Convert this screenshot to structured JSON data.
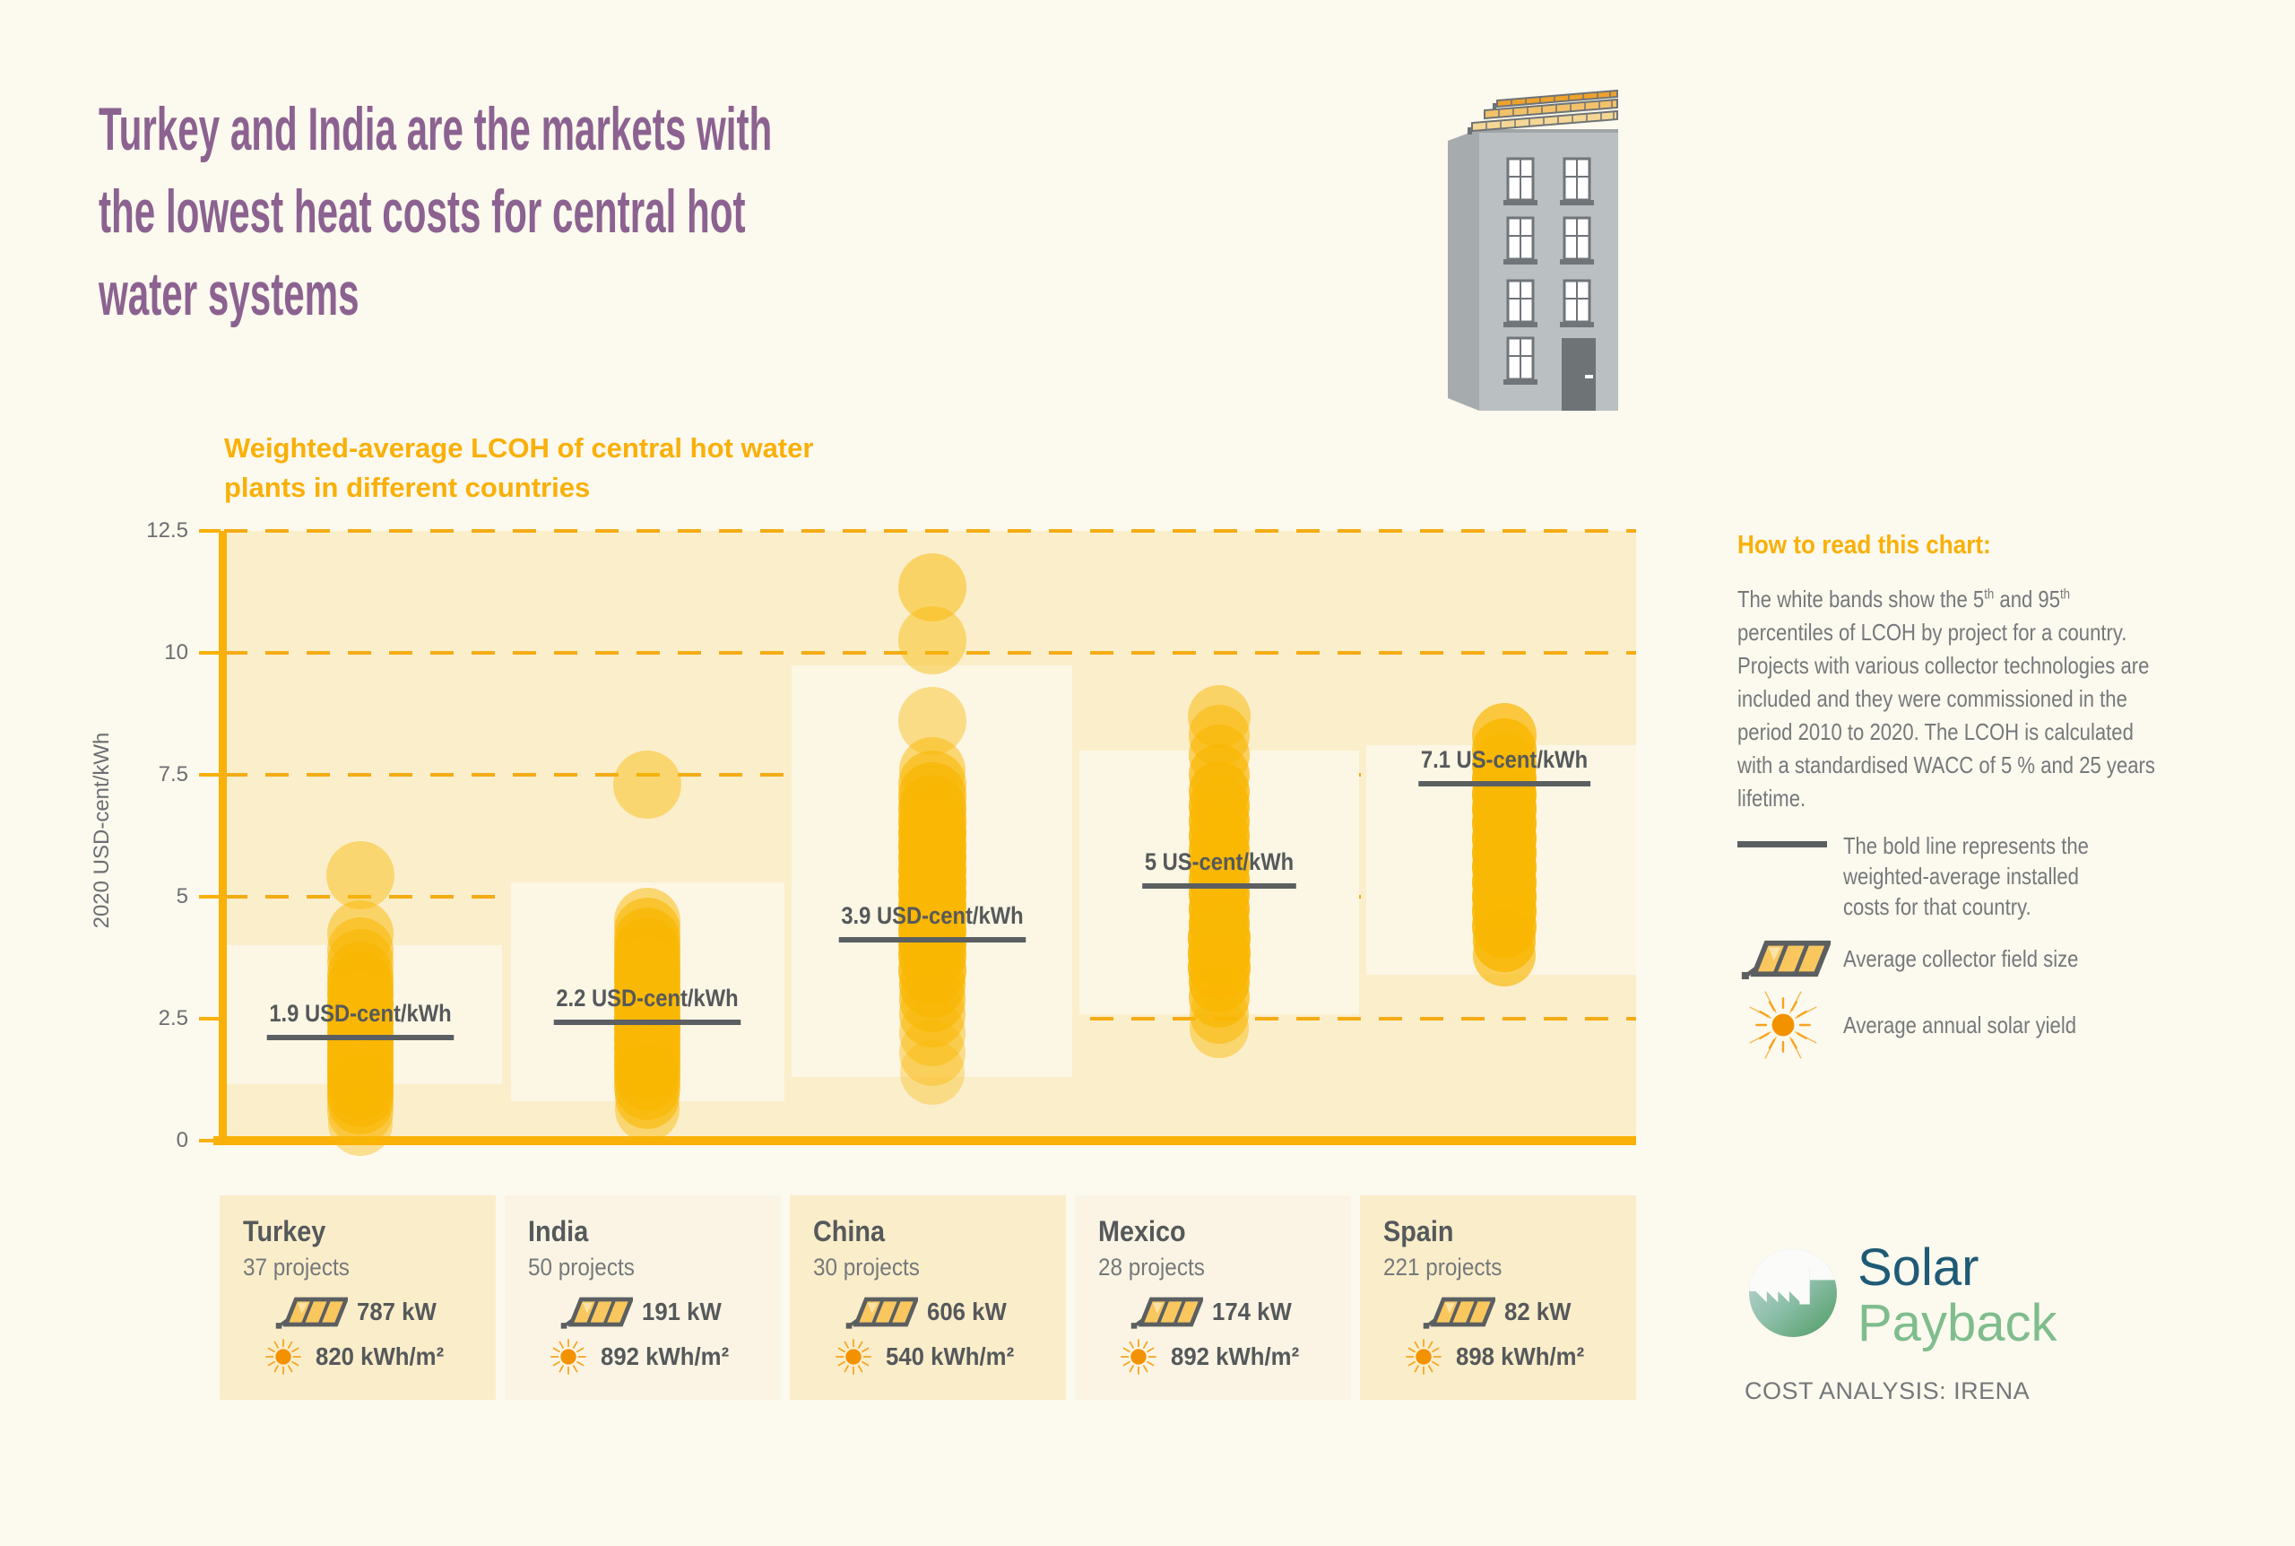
{
  "page": {
    "background": "#FCF9EE",
    "title_lines": [
      "Turkey and India are the markets with",
      "the lowest heat costs for central hot",
      "water systems"
    ],
    "title_color": "#8B6290"
  },
  "chart_data": {
    "type": "scatter",
    "title": "Weighted-average LCOH of central hot water plants in different countries",
    "title_lines": [
      "Weighted-average LCOH of central hot water",
      "plants in different countries"
    ],
    "xlabel": "",
    "ylabel": "2020 USD-cent/kWh",
    "ylim": [
      0,
      12.5
    ],
    "yticks": [
      0,
      2.5,
      5,
      7.5,
      10,
      12.5
    ],
    "ytick_labels": [
      "0",
      "2.5",
      "5",
      "7.5",
      "10",
      "12.5"
    ],
    "grid": {
      "style": "dashed",
      "at": [
        2.5,
        5,
        7.5,
        10,
        12.5
      ],
      "color": "#F3AC14"
    },
    "legend_position": "right",
    "accent_color": "#F9B008",
    "bubble_color": "#F9B703",
    "plot_bg": "#FBEECB",
    "band_color": "#FCF6E5",
    "avg_line_color": "#5B5F61",
    "bubble_note": "bubbles = [LCOH value in 2020 USD-cent/kWh, radius px, opacity]",
    "countries": [
      {
        "name": "Turkey",
        "avg_value": 1.9,
        "avg_label": "1.9 USD-cent/kWh",
        "percentile_band": [
          1.15,
          4.0
        ],
        "bubbles": [
          [
            5.45,
            38,
            0.45
          ],
          [
            4.25,
            37,
            0.5
          ],
          [
            3.9,
            37,
            0.55
          ],
          [
            3.65,
            37,
            0.6
          ],
          [
            3.4,
            37,
            0.7
          ],
          [
            3.2,
            37,
            0.8
          ],
          [
            3.0,
            37,
            0.85
          ],
          [
            2.8,
            37,
            0.9
          ],
          [
            2.6,
            37,
            0.9
          ],
          [
            2.4,
            37,
            0.9
          ],
          [
            2.2,
            37,
            0.9
          ],
          [
            2.0,
            37,
            0.9
          ],
          [
            1.85,
            37,
            0.9
          ],
          [
            1.7,
            37,
            0.9
          ],
          [
            1.55,
            37,
            0.9
          ],
          [
            1.4,
            37,
            0.88
          ],
          [
            1.25,
            37,
            0.85
          ],
          [
            1.1,
            37,
            0.8
          ],
          [
            0.95,
            37,
            0.75
          ],
          [
            0.8,
            37,
            0.65
          ],
          [
            0.6,
            37,
            0.5
          ],
          [
            0.35,
            36,
            0.4
          ]
        ]
      },
      {
        "name": "India",
        "avg_value": 2.2,
        "avg_label": "2.2 USD-cent/kWh",
        "percentile_band": [
          0.8,
          5.3
        ],
        "bubbles": [
          [
            7.3,
            38,
            0.45
          ],
          [
            4.5,
            37,
            0.5
          ],
          [
            4.3,
            37,
            0.6
          ],
          [
            4.1,
            37,
            0.7
          ],
          [
            3.9,
            37,
            0.8
          ],
          [
            3.7,
            37,
            0.85
          ],
          [
            3.5,
            37,
            0.9
          ],
          [
            3.3,
            37,
            0.9
          ],
          [
            3.1,
            37,
            0.92
          ],
          [
            2.9,
            37,
            0.92
          ],
          [
            2.7,
            37,
            0.92
          ],
          [
            2.5,
            37,
            0.92
          ],
          [
            2.3,
            37,
            0.92
          ],
          [
            2.1,
            37,
            0.9
          ],
          [
            1.9,
            37,
            0.9
          ],
          [
            1.7,
            37,
            0.88
          ],
          [
            1.5,
            37,
            0.85
          ],
          [
            1.3,
            37,
            0.8
          ],
          [
            1.1,
            37,
            0.7
          ],
          [
            0.9,
            36,
            0.6
          ],
          [
            0.65,
            36,
            0.45
          ]
        ]
      },
      {
        "name": "China",
        "avg_value": 3.9,
        "avg_label": "3.9 USD-cent/kWh",
        "percentile_band": [
          1.3,
          9.75
        ],
        "bubbles": [
          [
            11.35,
            38,
            0.5
          ],
          [
            10.25,
            38,
            0.45
          ],
          [
            8.6,
            38,
            0.42
          ],
          [
            7.6,
            37,
            0.5
          ],
          [
            7.3,
            38,
            0.6
          ],
          [
            7.05,
            38,
            0.7
          ],
          [
            6.8,
            38,
            0.8
          ],
          [
            6.55,
            38,
            0.85
          ],
          [
            6.3,
            38,
            0.9
          ],
          [
            6.05,
            38,
            0.9
          ],
          [
            5.8,
            38,
            0.9
          ],
          [
            5.55,
            38,
            0.9
          ],
          [
            5.3,
            38,
            0.9
          ],
          [
            5.05,
            38,
            0.9
          ],
          [
            4.8,
            38,
            0.9
          ],
          [
            4.55,
            38,
            0.9
          ],
          [
            4.3,
            38,
            0.9
          ],
          [
            4.05,
            38,
            0.88
          ],
          [
            3.8,
            38,
            0.85
          ],
          [
            3.5,
            38,
            0.8
          ],
          [
            3.2,
            37,
            0.75
          ],
          [
            2.9,
            37,
            0.65
          ],
          [
            2.6,
            37,
            0.55
          ],
          [
            2.2,
            37,
            0.45
          ],
          [
            1.8,
            37,
            0.4
          ],
          [
            1.4,
            36,
            0.35
          ]
        ]
      },
      {
        "name": "Mexico",
        "avg_value": 5,
        "avg_label": "5 US-cent/kWh",
        "percentile_band": [
          2.6,
          8.0
        ],
        "bubbles": [
          [
            8.7,
            35,
            0.5
          ],
          [
            8.3,
            34,
            0.55
          ],
          [
            7.9,
            34,
            0.6
          ],
          [
            7.5,
            34,
            0.7
          ],
          [
            7.15,
            34,
            0.8
          ],
          [
            6.85,
            34,
            0.85
          ],
          [
            6.55,
            34,
            0.85
          ],
          [
            6.25,
            34,
            0.88
          ],
          [
            5.95,
            34,
            0.88
          ],
          [
            5.65,
            34,
            0.88
          ],
          [
            5.35,
            34,
            0.88
          ],
          [
            5.05,
            34,
            0.9
          ],
          [
            4.75,
            34,
            0.9
          ],
          [
            4.45,
            34,
            0.9
          ],
          [
            4.15,
            35,
            0.92
          ],
          [
            3.85,
            35,
            0.92
          ],
          [
            3.55,
            35,
            0.9
          ],
          [
            3.25,
            34,
            0.85
          ],
          [
            2.95,
            34,
            0.7
          ],
          [
            2.6,
            33,
            0.55
          ],
          [
            2.3,
            33,
            0.45
          ]
        ]
      },
      {
        "name": "Spain",
        "avg_value": 7.1,
        "avg_label": "7.1 US-cent/kWh",
        "percentile_band": [
          3.4,
          8.1
        ],
        "bubbles": [
          [
            8.3,
            36,
            0.7
          ],
          [
            8.0,
            36,
            0.85
          ],
          [
            7.7,
            36,
            0.92
          ],
          [
            7.4,
            36,
            0.95
          ],
          [
            7.1,
            36,
            0.95
          ],
          [
            6.8,
            36,
            0.95
          ],
          [
            6.5,
            36,
            0.95
          ],
          [
            6.2,
            36,
            0.95
          ],
          [
            5.9,
            36,
            0.95
          ],
          [
            5.6,
            36,
            0.95
          ],
          [
            5.3,
            36,
            0.95
          ],
          [
            5.0,
            36,
            0.95
          ],
          [
            4.7,
            36,
            0.92
          ],
          [
            4.4,
            36,
            0.88
          ],
          [
            4.1,
            35,
            0.8
          ],
          [
            3.8,
            35,
            0.65
          ]
        ]
      }
    ]
  },
  "how_to_read": {
    "heading": "How to read this chart:",
    "body": {
      "p1": "The white bands show the 5",
      "sup1": "th",
      "p2": " and 95",
      "sup2": "th",
      "p3": " percentiles of LCOH by project for a country. Projects with various collector technologies are included and they were commissioned in the period 2010 to 2020. The LCOH is calculated with a standardised WACC of 5 % and 25 years lifetime."
    },
    "legend": [
      {
        "icon": "bold-line-icon",
        "label": "The bold line represents the weighted-average installed costs for that country."
      },
      {
        "icon": "collector-icon",
        "label": "Average collector field size"
      },
      {
        "icon": "sun-icon",
        "label": "Average annual solar yield"
      }
    ]
  },
  "cards": [
    {
      "country": "Turkey",
      "projects": "37 projects",
      "collector": "787 kW",
      "yield": "820 kWh/m²"
    },
    {
      "country": "India",
      "projects": "50 projects",
      "collector": "191 kW",
      "yield": "892 kWh/m²"
    },
    {
      "country": "China",
      "projects": "30 projects",
      "collector": "606 kW",
      "yield": "540 kWh/m²"
    },
    {
      "country": "Mexico",
      "projects": "28 projects",
      "collector": "174 kW",
      "yield": "892 kWh/m²"
    },
    {
      "country": "Spain",
      "projects": "221 projects",
      "collector": "82 kW",
      "yield": "898 kWh/m²"
    }
  ],
  "footer": {
    "brand_top": "Solar",
    "brand_bottom": "Payback",
    "credit": "COST ANALYSIS: IRENA",
    "card_colors": [
      "#FAEDCA",
      "#FBF4E4"
    ]
  }
}
